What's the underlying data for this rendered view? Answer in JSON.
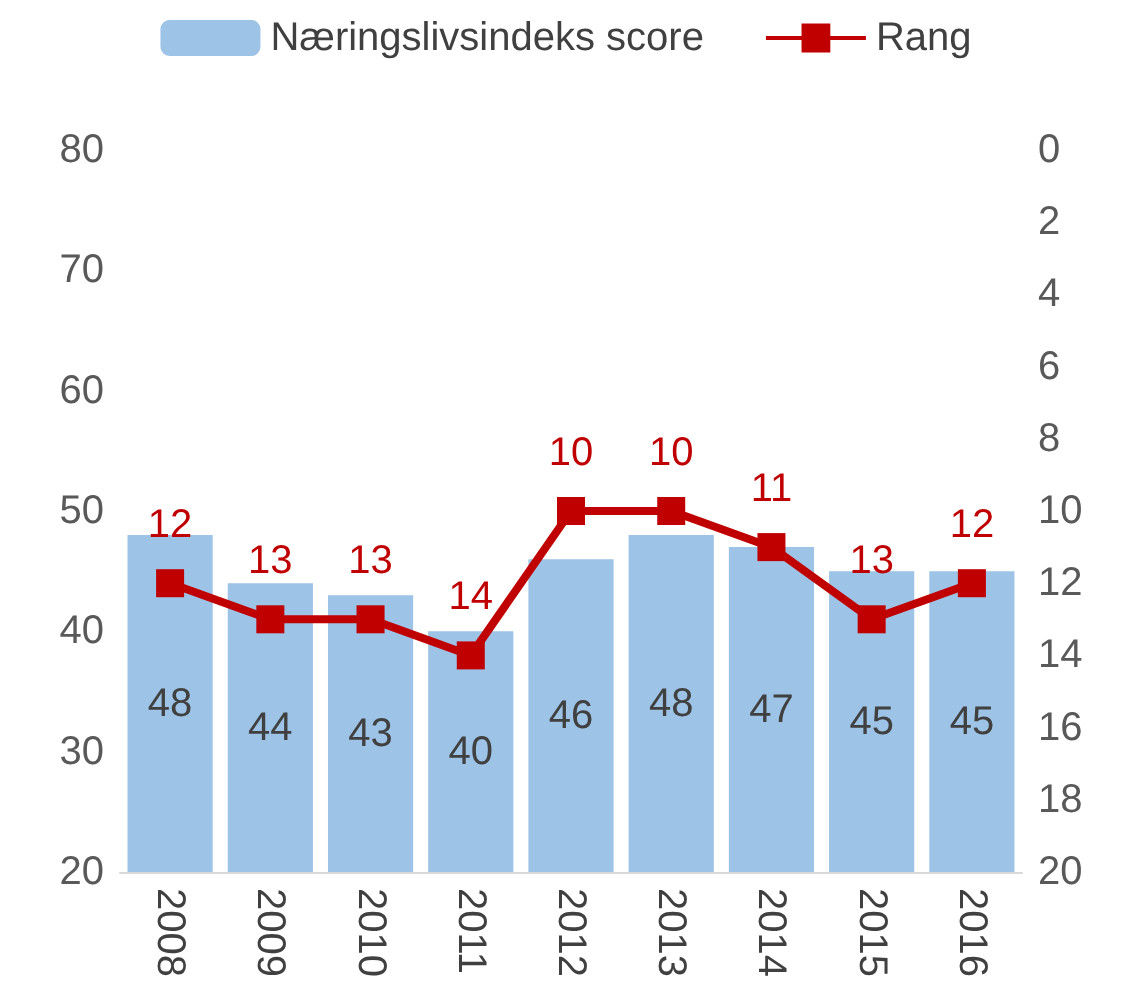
{
  "chart_data": {
    "type": "bar",
    "categories": [
      "2008",
      "2009",
      "2010",
      "2011",
      "2012",
      "2013",
      "2014",
      "2015",
      "2016"
    ],
    "series": [
      {
        "name": "Næringslivsindeks score",
        "color": "#9dc3e6",
        "values": [
          48,
          44,
          43,
          40,
          46,
          48,
          47,
          45,
          45
        ]
      },
      {
        "name": "Rang",
        "type": "line",
        "axis": "y2",
        "color": "#c00000",
        "values": [
          12,
          13,
          13,
          14,
          10,
          10,
          11,
          13,
          12
        ]
      }
    ],
    "ylim": [
      20,
      80
    ],
    "yticks": [
      20,
      30,
      40,
      50,
      60,
      70,
      80
    ],
    "y2lim": [
      20,
      0
    ],
    "y2ticks": [
      0,
      2,
      4,
      6,
      8,
      10,
      12,
      14,
      16,
      18,
      20
    ],
    "data_labels": true,
    "grid": false,
    "legend": "top",
    "marker": "square",
    "line_style": "solid"
  }
}
